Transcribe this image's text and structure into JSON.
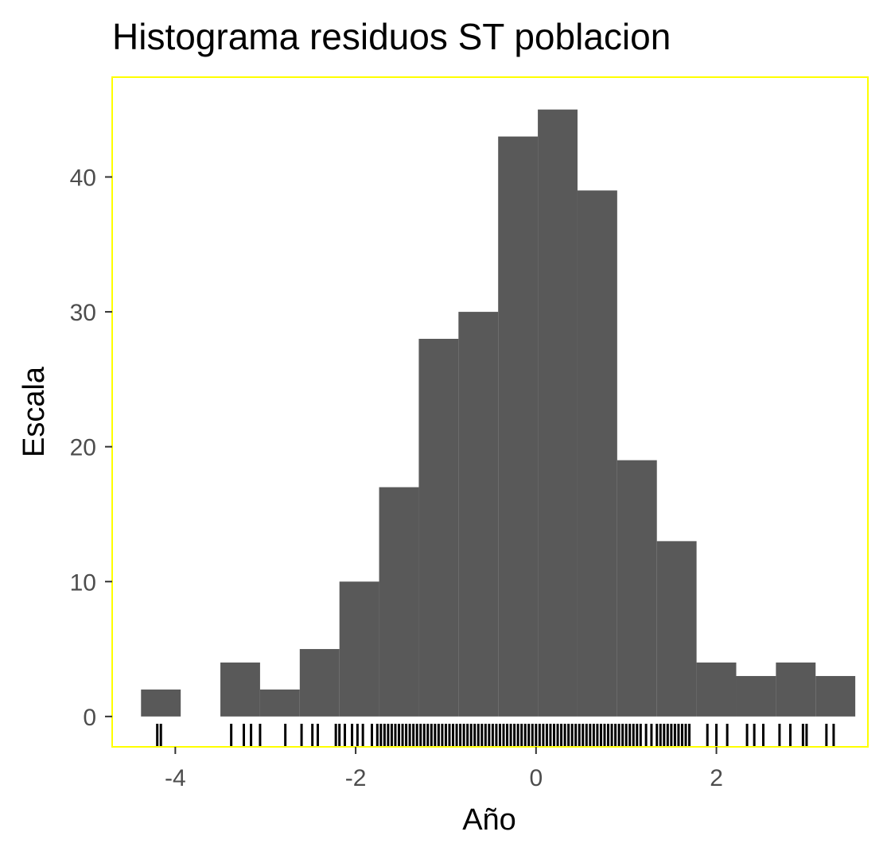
{
  "chart_data": {
    "type": "bar",
    "title": "Histograma residuos ST poblacion",
    "xlabel": "Año",
    "ylabel": "Escala",
    "bin_width": 0.44,
    "bins": [
      {
        "start": -4.38,
        "end": -3.94,
        "count": 2
      },
      {
        "start": -3.94,
        "end": -3.5,
        "count": 0
      },
      {
        "start": -3.5,
        "end": -3.06,
        "count": 4
      },
      {
        "start": -3.06,
        "end": -2.62,
        "count": 2
      },
      {
        "start": -2.62,
        "end": -2.18,
        "count": 5
      },
      {
        "start": -2.18,
        "end": -1.74,
        "count": 10
      },
      {
        "start": -1.74,
        "end": -1.3,
        "count": 17
      },
      {
        "start": -1.3,
        "end": -0.86,
        "count": 28
      },
      {
        "start": -0.86,
        "end": -0.42,
        "count": 30
      },
      {
        "start": -0.42,
        "end": 0.02,
        "count": 43
      },
      {
        "start": 0.02,
        "end": 0.46,
        "count": 45
      },
      {
        "start": 0.46,
        "end": 0.9,
        "count": 39
      },
      {
        "start": 0.9,
        "end": 1.34,
        "count": 19
      },
      {
        "start": 1.34,
        "end": 1.78,
        "count": 13
      },
      {
        "start": 1.78,
        "end": 2.22,
        "count": 4
      },
      {
        "start": 2.22,
        "end": 2.66,
        "count": 3
      },
      {
        "start": 2.66,
        "end": 3.1,
        "count": 4
      },
      {
        "start": 3.1,
        "end": 3.54,
        "count": 3
      }
    ],
    "rug": [
      -4.2,
      -4.16,
      -3.38,
      -3.24,
      -3.16,
      -3.06,
      -2.78,
      -2.6,
      -2.48,
      -2.42,
      -2.22,
      -2.18,
      -2.12,
      -2.04,
      -1.98,
      -1.92,
      -1.82,
      -1.76,
      -1.72,
      -1.68,
      -1.64,
      -1.6,
      -1.56,
      -1.52,
      -1.48,
      -1.44,
      -1.4,
      -1.36,
      -1.32,
      -1.28,
      -1.24,
      -1.2,
      -1.16,
      -1.12,
      -1.08,
      -1.04,
      -1.0,
      -0.96,
      -0.92,
      -0.88,
      -0.84,
      -0.8,
      -0.76,
      -0.72,
      -0.68,
      -0.64,
      -0.6,
      -0.56,
      -0.52,
      -0.48,
      -0.44,
      -0.4,
      -0.36,
      -0.32,
      -0.28,
      -0.24,
      -0.2,
      -0.16,
      -0.12,
      -0.08,
      -0.04,
      0.0,
      0.04,
      0.08,
      0.12,
      0.16,
      0.2,
      0.24,
      0.28,
      0.32,
      0.36,
      0.4,
      0.44,
      0.48,
      0.52,
      0.56,
      0.6,
      0.64,
      0.68,
      0.72,
      0.76,
      0.8,
      0.84,
      0.88,
      0.92,
      0.96,
      1.0,
      1.04,
      1.08,
      1.12,
      1.16,
      1.22,
      1.28,
      1.34,
      1.38,
      1.42,
      1.46,
      1.5,
      1.54,
      1.58,
      1.62,
      1.66,
      1.7,
      1.9,
      2.0,
      2.12,
      2.34,
      2.42,
      2.52,
      2.7,
      2.82,
      2.96,
      3.0,
      3.22,
      3.3
    ],
    "xlim": [
      -4.7,
      3.68
    ],
    "ylim": [
      -2.25,
      47.4
    ],
    "xticks": [
      -4,
      -2,
      0,
      2
    ],
    "xtick_labels": [
      "-4",
      "-2",
      "0",
      "2"
    ],
    "yticks": [
      0,
      10,
      20,
      30,
      40
    ],
    "ytick_labels": [
      "0",
      "10",
      "20",
      "30",
      "40"
    ],
    "grid": false,
    "colors": {
      "bar": "#595959",
      "rug": "#000000",
      "panel_border": "#ffff00",
      "tick": "#333333",
      "tick_label": "#4d4d4d"
    }
  }
}
